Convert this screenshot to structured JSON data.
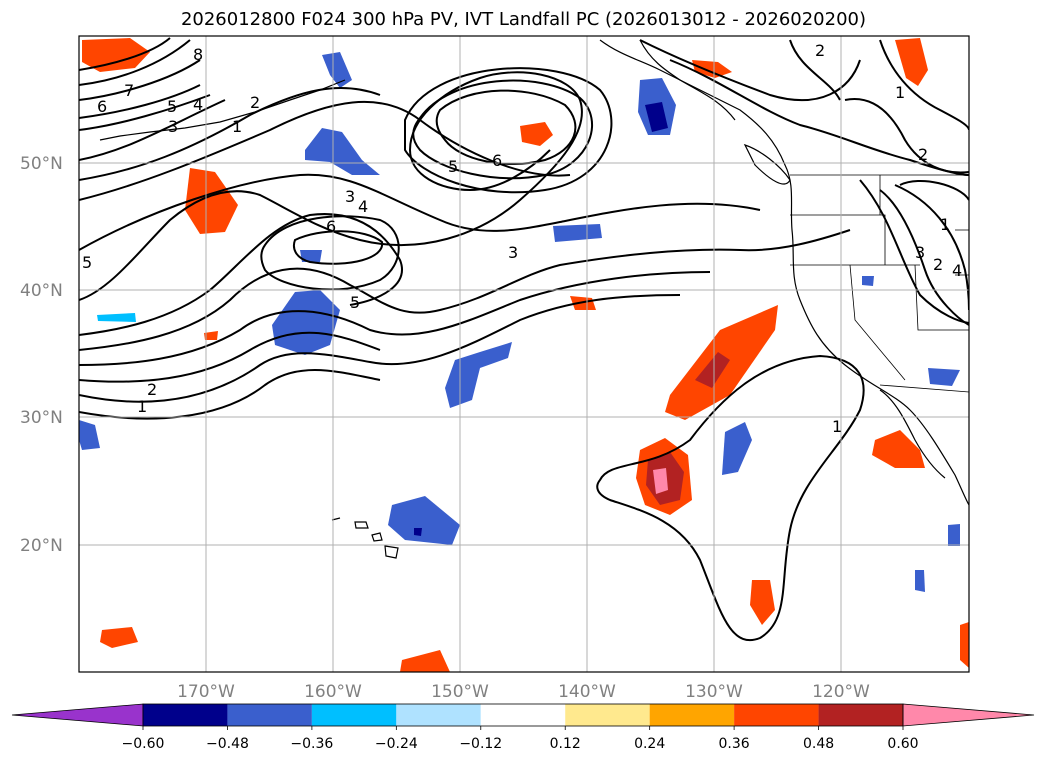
{
  "title": "2026012800 F024 300 hPa PV, IVT Landfall PC (2026013012 - 2026020200)",
  "lat_labels": [
    "50°N",
    "40°N",
    "30°N",
    "20°N"
  ],
  "lon_labels": [
    "170°W",
    "160°W",
    "150°W",
    "140°W",
    "130°W",
    "120°W"
  ],
  "contour_labels": [
    "8",
    "7",
    "6",
    "5",
    "4",
    "3",
    "2",
    "1",
    "2",
    "1",
    "5",
    "3",
    "4",
    "6",
    "5",
    "3",
    "6",
    "5",
    "2",
    "1",
    "1",
    "2",
    "1",
    "3",
    "2",
    "4"
  ],
  "colorbar": {
    "ticks": [
      "−0.60",
      "−0.48",
      "−0.36",
      "−0.24",
      "−0.12",
      "0.12",
      "0.24",
      "0.36",
      "0.48",
      "0.60"
    ],
    "colors": [
      "#9933cc",
      "#00008b",
      "#3a5fcd",
      "#00bfff",
      "#afe2ff",
      "#ffffff",
      "#ffe98e",
      "#ffa500",
      "#ff4500",
      "#b22222",
      "#ff88aa"
    ]
  },
  "palette": {
    "land_line": "#000000",
    "grid": "#b0b0b0"
  }
}
